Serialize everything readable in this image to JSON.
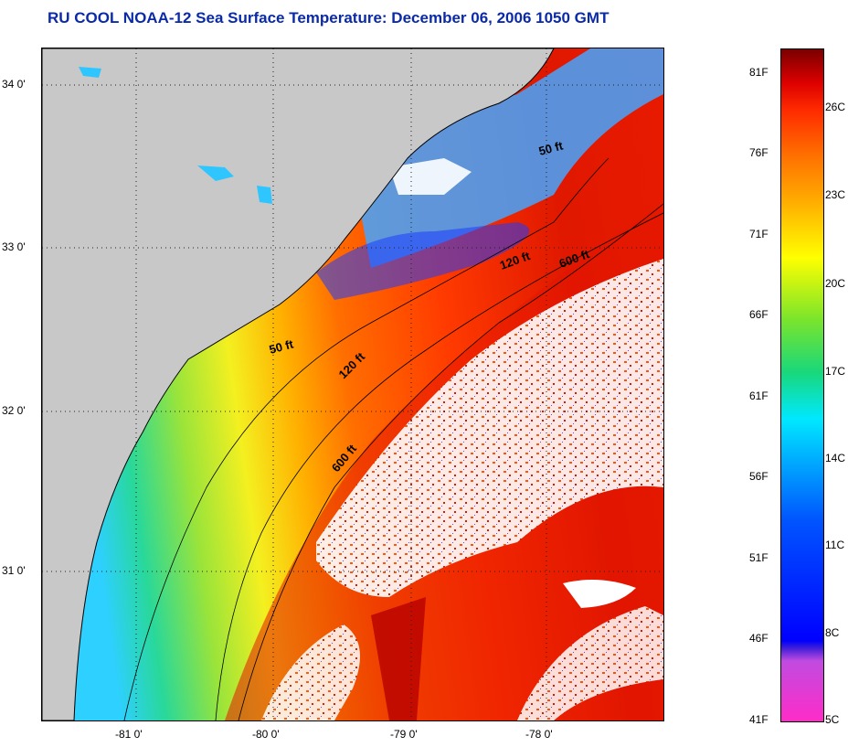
{
  "title": "RU COOL  NOAA-12  Sea Surface Temperature:  December 06, 2006 1050 GMT",
  "colors": {
    "title": "#0b2aa8",
    "land": "#c8c8c8",
    "clouds": "#ffffff",
    "contour": "#000000"
  },
  "map": {
    "lat_labels": [
      "34 0'",
      "33 0'",
      "32 0'",
      "31 0'"
    ],
    "lon_labels": [
      "-81 0'",
      "-80 0'",
      "-79 0'",
      "-78 0'"
    ],
    "isobaths": [
      {
        "label": "50 ft"
      },
      {
        "label": "50 ft"
      },
      {
        "label": "120 ft"
      },
      {
        "label": "120 ft"
      },
      {
        "label": "600 ft"
      },
      {
        "label": "600 ft"
      }
    ]
  },
  "colorbar": {
    "fahrenheit": [
      "81F",
      "76F",
      "71F",
      "66F",
      "61F",
      "56F",
      "51F",
      "46F",
      "41F"
    ],
    "celsius": [
      "26C",
      "23C",
      "20C",
      "17C",
      "14C",
      "11C",
      "8C",
      "5C"
    ]
  }
}
